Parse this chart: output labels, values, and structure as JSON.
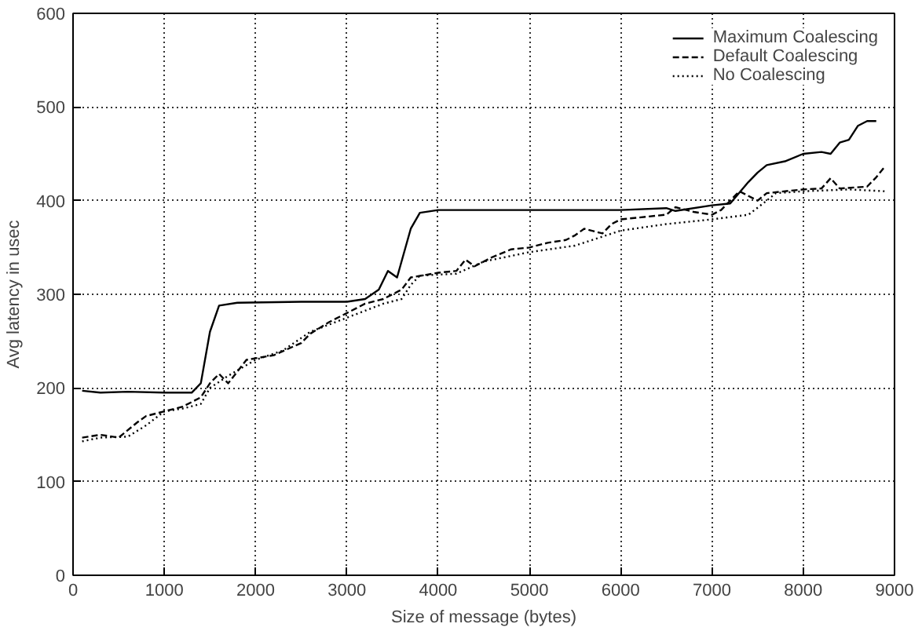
{
  "chart_data": {
    "type": "line",
    "xlabel": "Size of message (bytes)",
    "ylabel": "Avg latency in usec",
    "xlim": [
      0,
      9000
    ],
    "ylim": [
      0,
      600
    ],
    "xticks": [
      0,
      1000,
      2000,
      3000,
      4000,
      5000,
      6000,
      7000,
      8000,
      9000
    ],
    "yticks": [
      0,
      100,
      200,
      300,
      400,
      500,
      600
    ],
    "grid": true,
    "legend": "top right",
    "series": [
      {
        "name": "Maximum Coalescing",
        "color": "#000000",
        "line_style": "solid",
        "x": [
          100,
          300,
          600,
          1000,
          1300,
          1400,
          1500,
          1600,
          1800,
          2500,
          3000,
          3200,
          3350,
          3450,
          3550,
          3700,
          3800,
          4000,
          5000,
          6000,
          6500,
          6600,
          7000,
          7200,
          7400,
          7500,
          7600,
          7800,
          8000,
          8200,
          8300,
          8400,
          8500,
          8600,
          8700,
          8800
        ],
        "values": [
          197,
          195,
          196,
          195,
          195,
          205,
          260,
          288,
          291,
          292,
          292,
          295,
          305,
          325,
          318,
          370,
          387,
          390,
          390,
          390,
          392,
          389,
          395,
          397,
          420,
          430,
          438,
          442,
          450,
          452,
          450,
          462,
          465,
          480,
          485,
          485
        ]
      },
      {
        "name": "Default Coalescing",
        "color": "#000000",
        "line_style": "dashed",
        "x": [
          100,
          300,
          500,
          700,
          800,
          1000,
          1200,
          1400,
          1500,
          1600,
          1700,
          1900,
          2200,
          2500,
          2600,
          2800,
          3000,
          3200,
          3400,
          3600,
          3700,
          4000,
          4200,
          4300,
          4400,
          4600,
          4800,
          5000,
          5200,
          5400,
          5500,
          5600,
          5800,
          5900,
          6000,
          6500,
          6600,
          6800,
          7000,
          7100,
          7300,
          7500,
          7600,
          8000,
          8200,
          8300,
          8400,
          8700,
          8800,
          8900
        ],
        "values": [
          147,
          150,
          147,
          163,
          170,
          175,
          180,
          190,
          205,
          215,
          205,
          230,
          235,
          248,
          258,
          270,
          280,
          290,
          295,
          305,
          318,
          323,
          325,
          337,
          330,
          340,
          348,
          350,
          355,
          358,
          363,
          370,
          365,
          375,
          380,
          385,
          393,
          388,
          385,
          390,
          410,
          400,
          408,
          412,
          413,
          424,
          413,
          415,
          425,
          437
        ]
      },
      {
        "name": "No Coalescing",
        "color": "#000000",
        "line_style": "dotted",
        "x": [
          100,
          300,
          600,
          800,
          1000,
          1200,
          1400,
          1500,
          1700,
          2000,
          2300,
          2600,
          3000,
          3400,
          3600,
          3700,
          3800,
          4200,
          4500,
          5000,
          5500,
          6000,
          6500,
          7000,
          7400,
          7600,
          7700,
          8000,
          8500,
          8900
        ],
        "values": [
          143,
          147,
          148,
          160,
          175,
          178,
          183,
          200,
          213,
          230,
          240,
          260,
          275,
          290,
          295,
          310,
          320,
          322,
          335,
          345,
          352,
          368,
          375,
          380,
          385,
          400,
          408,
          410,
          412,
          410
        ]
      }
    ]
  }
}
